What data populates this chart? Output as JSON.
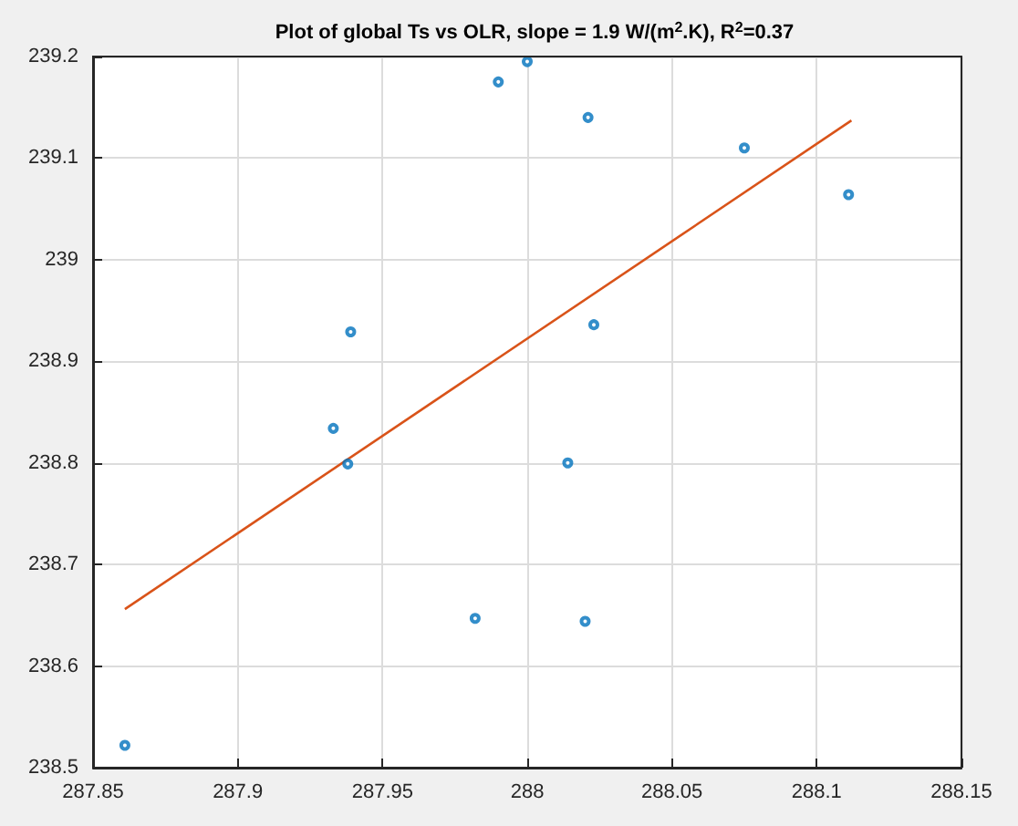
{
  "chart_data": {
    "type": "scatter",
    "title": "Plot of global Ts vs OLR, slope = 1.9 W/(m$^{2}$.K), R$^{2}$=0.37",
    "series": [
      {
        "color": "#0072bd",
        "marker": "circle",
        "x": [
          287.861,
          287.933,
          287.938,
          287.939,
          287.982,
          287.99,
          288.0,
          288.014,
          288.02,
          288.021,
          288.023,
          288.075,
          288.111
        ],
        "values": [
          238.522,
          238.834,
          238.799,
          238.929,
          238.647,
          239.175,
          239.195,
          238.8,
          238.644,
          239.14,
          238.936,
          239.11,
          239.064
        ]
      },
      {
        "type": "line",
        "marker": "none",
        "color": "#d95319",
        "x": [
          287.861,
          288.112
        ],
        "values": [
          238.656,
          239.137
        ]
      }
    ],
    "xlim": [
      287.85,
      288.15
    ],
    "xticks": [
      287.85,
      287.9,
      287.95,
      288,
      288.05,
      288.1,
      288.15
    ],
    "ylim": [
      238.5,
      239.2
    ],
    "yticks": [
      238.5,
      238.6,
      238.7,
      238.8,
      238.9,
      239,
      239.1,
      239.2
    ],
    "grid": true
  }
}
